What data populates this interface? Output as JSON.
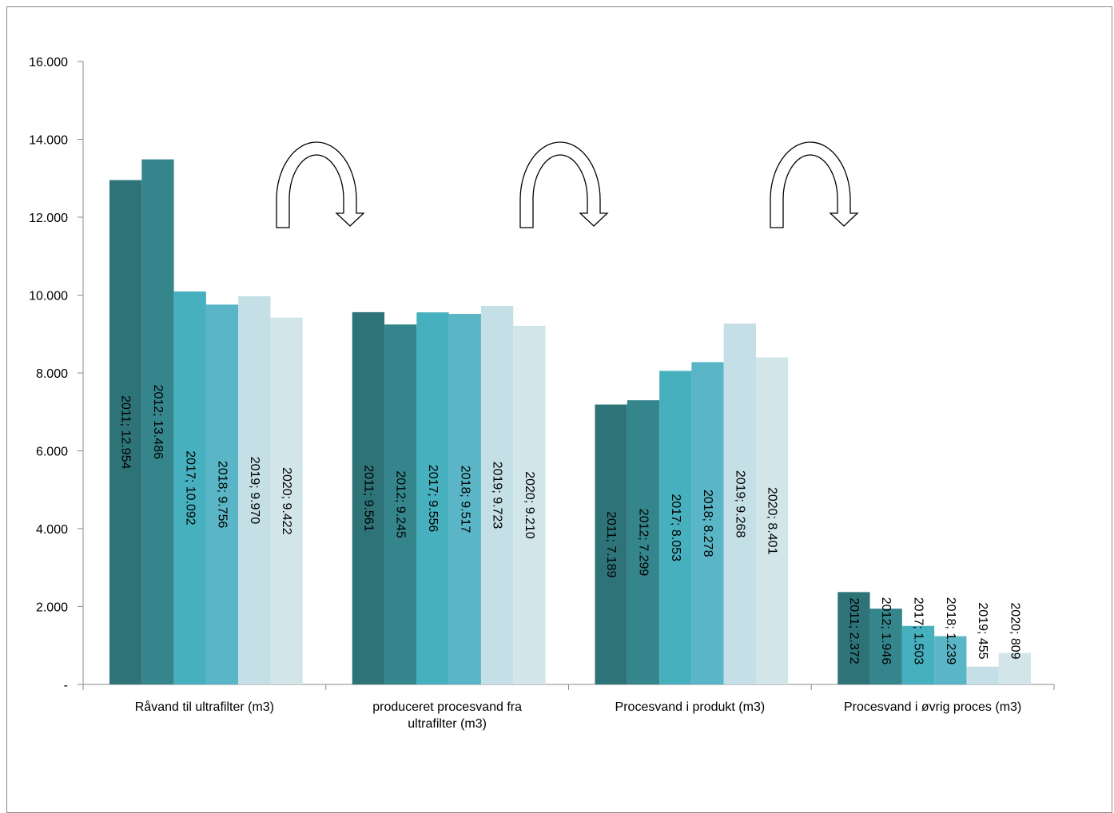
{
  "chart_data": {
    "type": "bar",
    "categories": [
      [
        "Råvand til ultrafilter (m3)"
      ],
      [
        "produceret procesvand fra",
        "ultrafilter (m3)"
      ],
      [
        "Procesvand i produkt (m3)"
      ],
      [
        "Procesvand i øvrig proces (m3)"
      ]
    ],
    "series": [
      {
        "name": "2011",
        "color": "#2e7378",
        "values": [
          12954,
          9561,
          7189,
          2372
        ]
      },
      {
        "name": "2012",
        "color": "#35868c",
        "values": [
          13486,
          9245,
          7299,
          1946
        ]
      },
      {
        "name": "2017",
        "color": "#46b0be",
        "values": [
          10092,
          9556,
          8053,
          1503
        ]
      },
      {
        "name": "2018",
        "color": "#5ab6c6",
        "values": [
          9756,
          9517,
          8278,
          1239
        ]
      },
      {
        "name": "2019",
        "color": "#c4dfe5",
        "values": [
          9970,
          9723,
          9268,
          455
        ]
      },
      {
        "name": "2020",
        "color": "#d2e6ea",
        "values": [
          9422,
          9210,
          8401,
          809
        ]
      }
    ],
    "data_labels": [
      [
        "2011; 12.954",
        "2011; 9.561",
        "2011; 7.189",
        "2011; 2.372"
      ],
      [
        "2012; 13.486",
        "2012; 9.245",
        "2012; 7.299",
        "2012; 1.946"
      ],
      [
        "2017; 10.092",
        "2017; 9.556",
        "2017; 8.053",
        "2017; 1.503"
      ],
      [
        "2018; 9.756",
        "2018; 9.517",
        "2018; 8.278",
        "2018; 1.239"
      ],
      [
        "2019; 9.970",
        "2019; 9.723",
        "2019; 9.268",
        "2019; 455"
      ],
      [
        "2020; 9.422",
        "2020; 9.210",
        "2020; 8.401",
        "2020; 809"
      ]
    ],
    "ylim": [
      0,
      16000
    ],
    "yticks": [
      0,
      2000,
      4000,
      6000,
      8000,
      10000,
      12000,
      14000,
      16000
    ],
    "ytick_labels": [
      "-",
      "2.000",
      "4.000",
      "6.000",
      "8.000",
      "10.000",
      "12.000",
      "14.000",
      "16.000"
    ],
    "xlabel": "",
    "ylabel": "",
    "grid": false,
    "legend": "none",
    "annotations": [
      "curved-arrow-icon",
      "curved-arrow-icon",
      "curved-arrow-icon"
    ]
  }
}
